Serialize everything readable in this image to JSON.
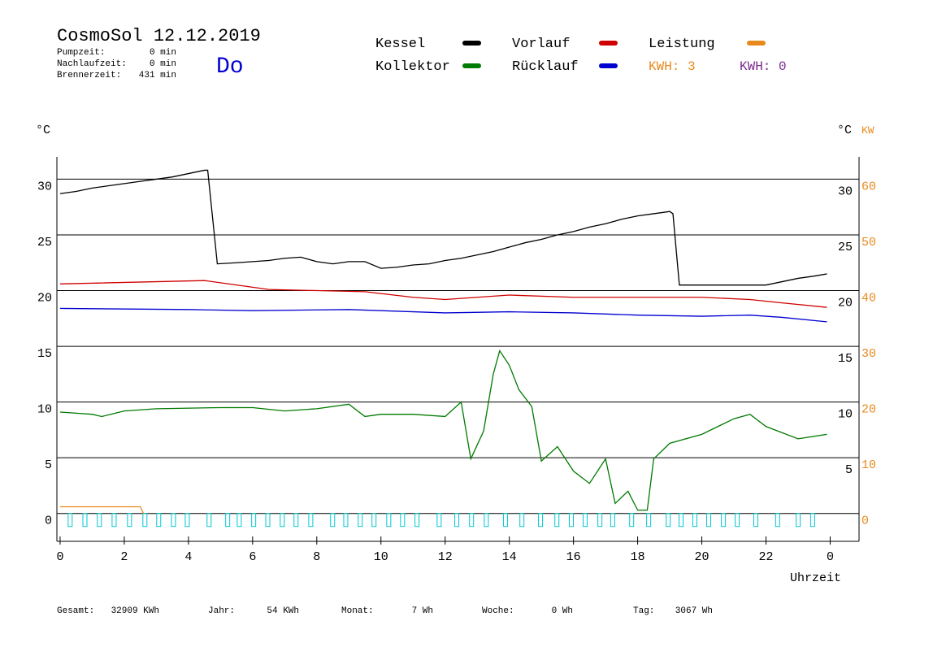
{
  "chart_data": {
    "type": "line",
    "title": "CosmoSol 12.12.2019",
    "weekday": "Do",
    "info": [
      {
        "label": "Pumpzeit:",
        "value": "0 min"
      },
      {
        "label": "Nachlaufzeit:",
        "value": "0 min"
      },
      {
        "label": "Brennerzeit:",
        "value": "431 min"
      }
    ],
    "y_unit_left": "°C",
    "y_unit_right": "°C",
    "y2_unit": "KW",
    "x_label": "Uhrzeit",
    "kwh_labels": [
      {
        "text": "KWH: 3",
        "color": "#e8891c"
      },
      {
        "text": "KWH: 0",
        "color": "#7a2a8a"
      }
    ],
    "xlim": [
      -0.1,
      24.9
    ],
    "xticks": [
      0,
      2,
      4,
      6,
      8,
      10,
      12,
      14,
      16,
      18,
      20,
      22,
      {
        "value": 24,
        "label": "0"
      }
    ],
    "ylim": [
      -2.5,
      32
    ],
    "yticks": [
      0,
      5,
      10,
      15,
      20,
      25,
      30
    ],
    "yticks_right": [
      5,
      10,
      15,
      20,
      25,
      30
    ],
    "y2lim": [
      -5,
      64
    ],
    "y2ticks": [
      0,
      10,
      20,
      30,
      40,
      50,
      60
    ],
    "y2_color": "#e8891c",
    "grid": true,
    "series": [
      {
        "name": "Kessel",
        "color": "#000000",
        "x": [
          0,
          0.5,
          1,
          1.5,
          2,
          2.5,
          3,
          3.5,
          4,
          4.5,
          4.6,
          4.9,
          5.5,
          6,
          6.5,
          7,
          7.5,
          8,
          8.5,
          9,
          9.5,
          10,
          10.5,
          11,
          11.5,
          12,
          12.5,
          13,
          13.5,
          14,
          14.5,
          15,
          15.5,
          16,
          16.5,
          17,
          17.5,
          18,
          18.5,
          19,
          19.1,
          19.3,
          20,
          21,
          22,
          22.5,
          23,
          23.5,
          23.9
        ],
        "values": [
          28.7,
          28.9,
          29.2,
          29.4,
          29.6,
          29.8,
          30.0,
          30.2,
          30.5,
          30.8,
          30.8,
          22.4,
          22.5,
          22.6,
          22.7,
          22.9,
          23.0,
          22.6,
          22.4,
          22.6,
          22.6,
          22.0,
          22.1,
          22.3,
          22.4,
          22.7,
          22.9,
          23.2,
          23.5,
          23.9,
          24.3,
          24.6,
          25.0,
          25.3,
          25.7,
          26.0,
          26.4,
          26.7,
          26.9,
          27.1,
          26.9,
          20.5,
          20.5,
          20.5,
          20.5,
          20.8,
          21.1,
          21.3,
          21.5
        ]
      },
      {
        "name": "Kollektor",
        "color": "#007a00",
        "x": [
          0,
          1,
          1.3,
          2,
          3,
          5,
          6,
          7,
          8,
          9,
          9.5,
          10,
          11,
          12,
          12.5,
          12.8,
          13.2,
          13.5,
          13.7,
          14,
          14.3,
          14.7,
          15,
          15.5,
          16,
          16.5,
          17,
          17.3,
          17.7,
          18,
          18.3,
          18.5,
          19,
          20,
          21,
          21.5,
          22,
          23,
          23.9
        ],
        "values": [
          9.1,
          8.9,
          8.7,
          9.2,
          9.4,
          9.5,
          9.5,
          9.2,
          9.4,
          9.8,
          8.7,
          8.9,
          8.9,
          8.7,
          10.0,
          4.9,
          7.4,
          12.5,
          14.6,
          13.3,
          11.1,
          9.6,
          4.7,
          6.0,
          3.8,
          2.7,
          4.9,
          0.9,
          2.0,
          0.3,
          0.3,
          4.9,
          6.3,
          7.1,
          8.5,
          8.9,
          7.8,
          6.7,
          7.1
        ]
      },
      {
        "name": "Vorlauf",
        "color": "#d00000",
        "x": [
          0,
          4.5,
          5.5,
          6.5,
          8,
          9.5,
          11,
          12,
          13,
          14,
          16,
          18,
          20,
          21.5,
          22.5,
          23.9
        ],
        "values": [
          20.6,
          20.9,
          20.5,
          20.1,
          20.0,
          19.9,
          19.4,
          19.2,
          19.4,
          19.6,
          19.4,
          19.4,
          19.4,
          19.2,
          18.9,
          18.5
        ]
      },
      {
        "name": "Rücklauf",
        "color": "#0000d0",
        "x": [
          0,
          4,
          6,
          9,
          11,
          12,
          14,
          16,
          18,
          20,
          21.5,
          22.5,
          23.9
        ],
        "values": [
          18.4,
          18.3,
          18.2,
          18.3,
          18.1,
          18.0,
          18.1,
          18.0,
          17.8,
          17.7,
          17.8,
          17.6,
          17.2
        ]
      },
      {
        "name": "Leistung",
        "color": "#e8891c",
        "axis": "y2",
        "x": [
          0,
          2.5,
          2.6
        ],
        "values": [
          1.2,
          1.2,
          0
        ]
      }
    ],
    "pump": {
      "color": "#00c8d0",
      "x": [
        0.25,
        0.71,
        1.16,
        1.62,
        2.1,
        2.58,
        3.01,
        3.47,
        3.9,
        4.58,
        5.16,
        5.52,
        5.97,
        6.41,
        6.86,
        7.29,
        7.75,
        8.43,
        8.84,
        9.29,
        9.72,
        10.18,
        10.61,
        11.06,
        11.75,
        12.3,
        12.76,
        13.22,
        13.82,
        14.33,
        14.91,
        15.42,
        15.87,
        16.3,
        16.76,
        17.16,
        17.75,
        18.28,
        18.89,
        19.29,
        19.72,
        20.15,
        20.61,
        21.04,
        21.62,
        22.3,
        22.94,
        23.39
      ]
    },
    "totals": [
      {
        "label": "Gesamt:",
        "value": "32909 KWh"
      },
      {
        "label": "Jahr:",
        "value": "54 KWh"
      },
      {
        "label": "Monat:",
        "value": "7 Wh"
      },
      {
        "label": "Woche:",
        "value": "0 Wh"
      },
      {
        "label": "Tag:",
        "value": "3067 Wh"
      }
    ]
  }
}
